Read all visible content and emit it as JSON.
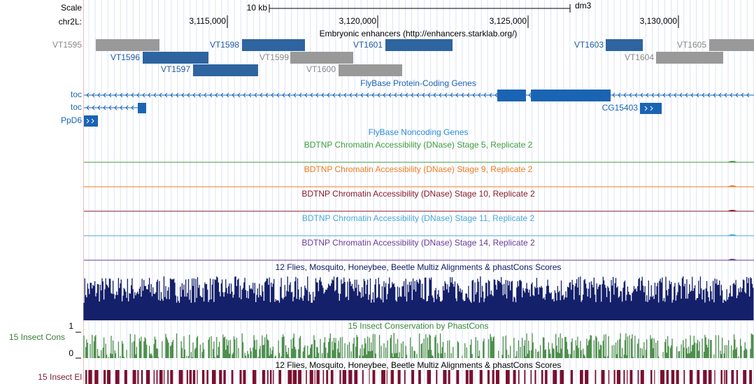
{
  "ruler": {
    "scale_label": "Scale",
    "scale_text": "10 kb",
    "assembly": "dm3",
    "chrom": "chr2L:",
    "ticks": [
      "3,115,000",
      "3,120,000",
      "3,125,000",
      "3,130,000"
    ]
  },
  "enhancers": {
    "title": "Embryonic enhancers (http://enhancers.starklab.org/)",
    "items": [
      "VT1595",
      "VT1596",
      "VT1597",
      "VT1598",
      "VT1599",
      "VT1600",
      "VT1601",
      "VT1603",
      "VT1604",
      "VT1605"
    ]
  },
  "genes": {
    "title": "FlyBase Protein-Coding Genes",
    "items": [
      "toc",
      "toc",
      "CG15403",
      "PpD6"
    ]
  },
  "noncoding": {
    "title": "FlyBase Noncoding Genes"
  },
  "dnase": [
    "BDTNP Chromatin Accessibility (DNase) Stage 5, Replicate 2",
    "BDTNP Chromatin Accessibility (DNase) Stage 9, Replicate 2",
    "BDTNP Chromatin Accessibility (DNase) Stage 10, Replicate 2",
    "BDTNP Chromatin Accessibility (DNase) Stage 11, Replicate 2",
    "BDTNP Chromatin Accessibility (DNase) Stage 14, Replicate 2"
  ],
  "multiz": {
    "title": "12 Flies, Mosquito, Honeybee, Beetle Multiz Alignments & phastCons Scores"
  },
  "conservation": {
    "title": "15 Insect Conservation by PhastCons",
    "side_label": "15 Insect Cons",
    "axis_top": "1",
    "axis_bottom": "0"
  },
  "elements": {
    "title": "12 Flies, Mosquito, Honeybee, Beetle Multiz Alignments & phastCons Scores",
    "side_label": "15 Insect El"
  }
}
